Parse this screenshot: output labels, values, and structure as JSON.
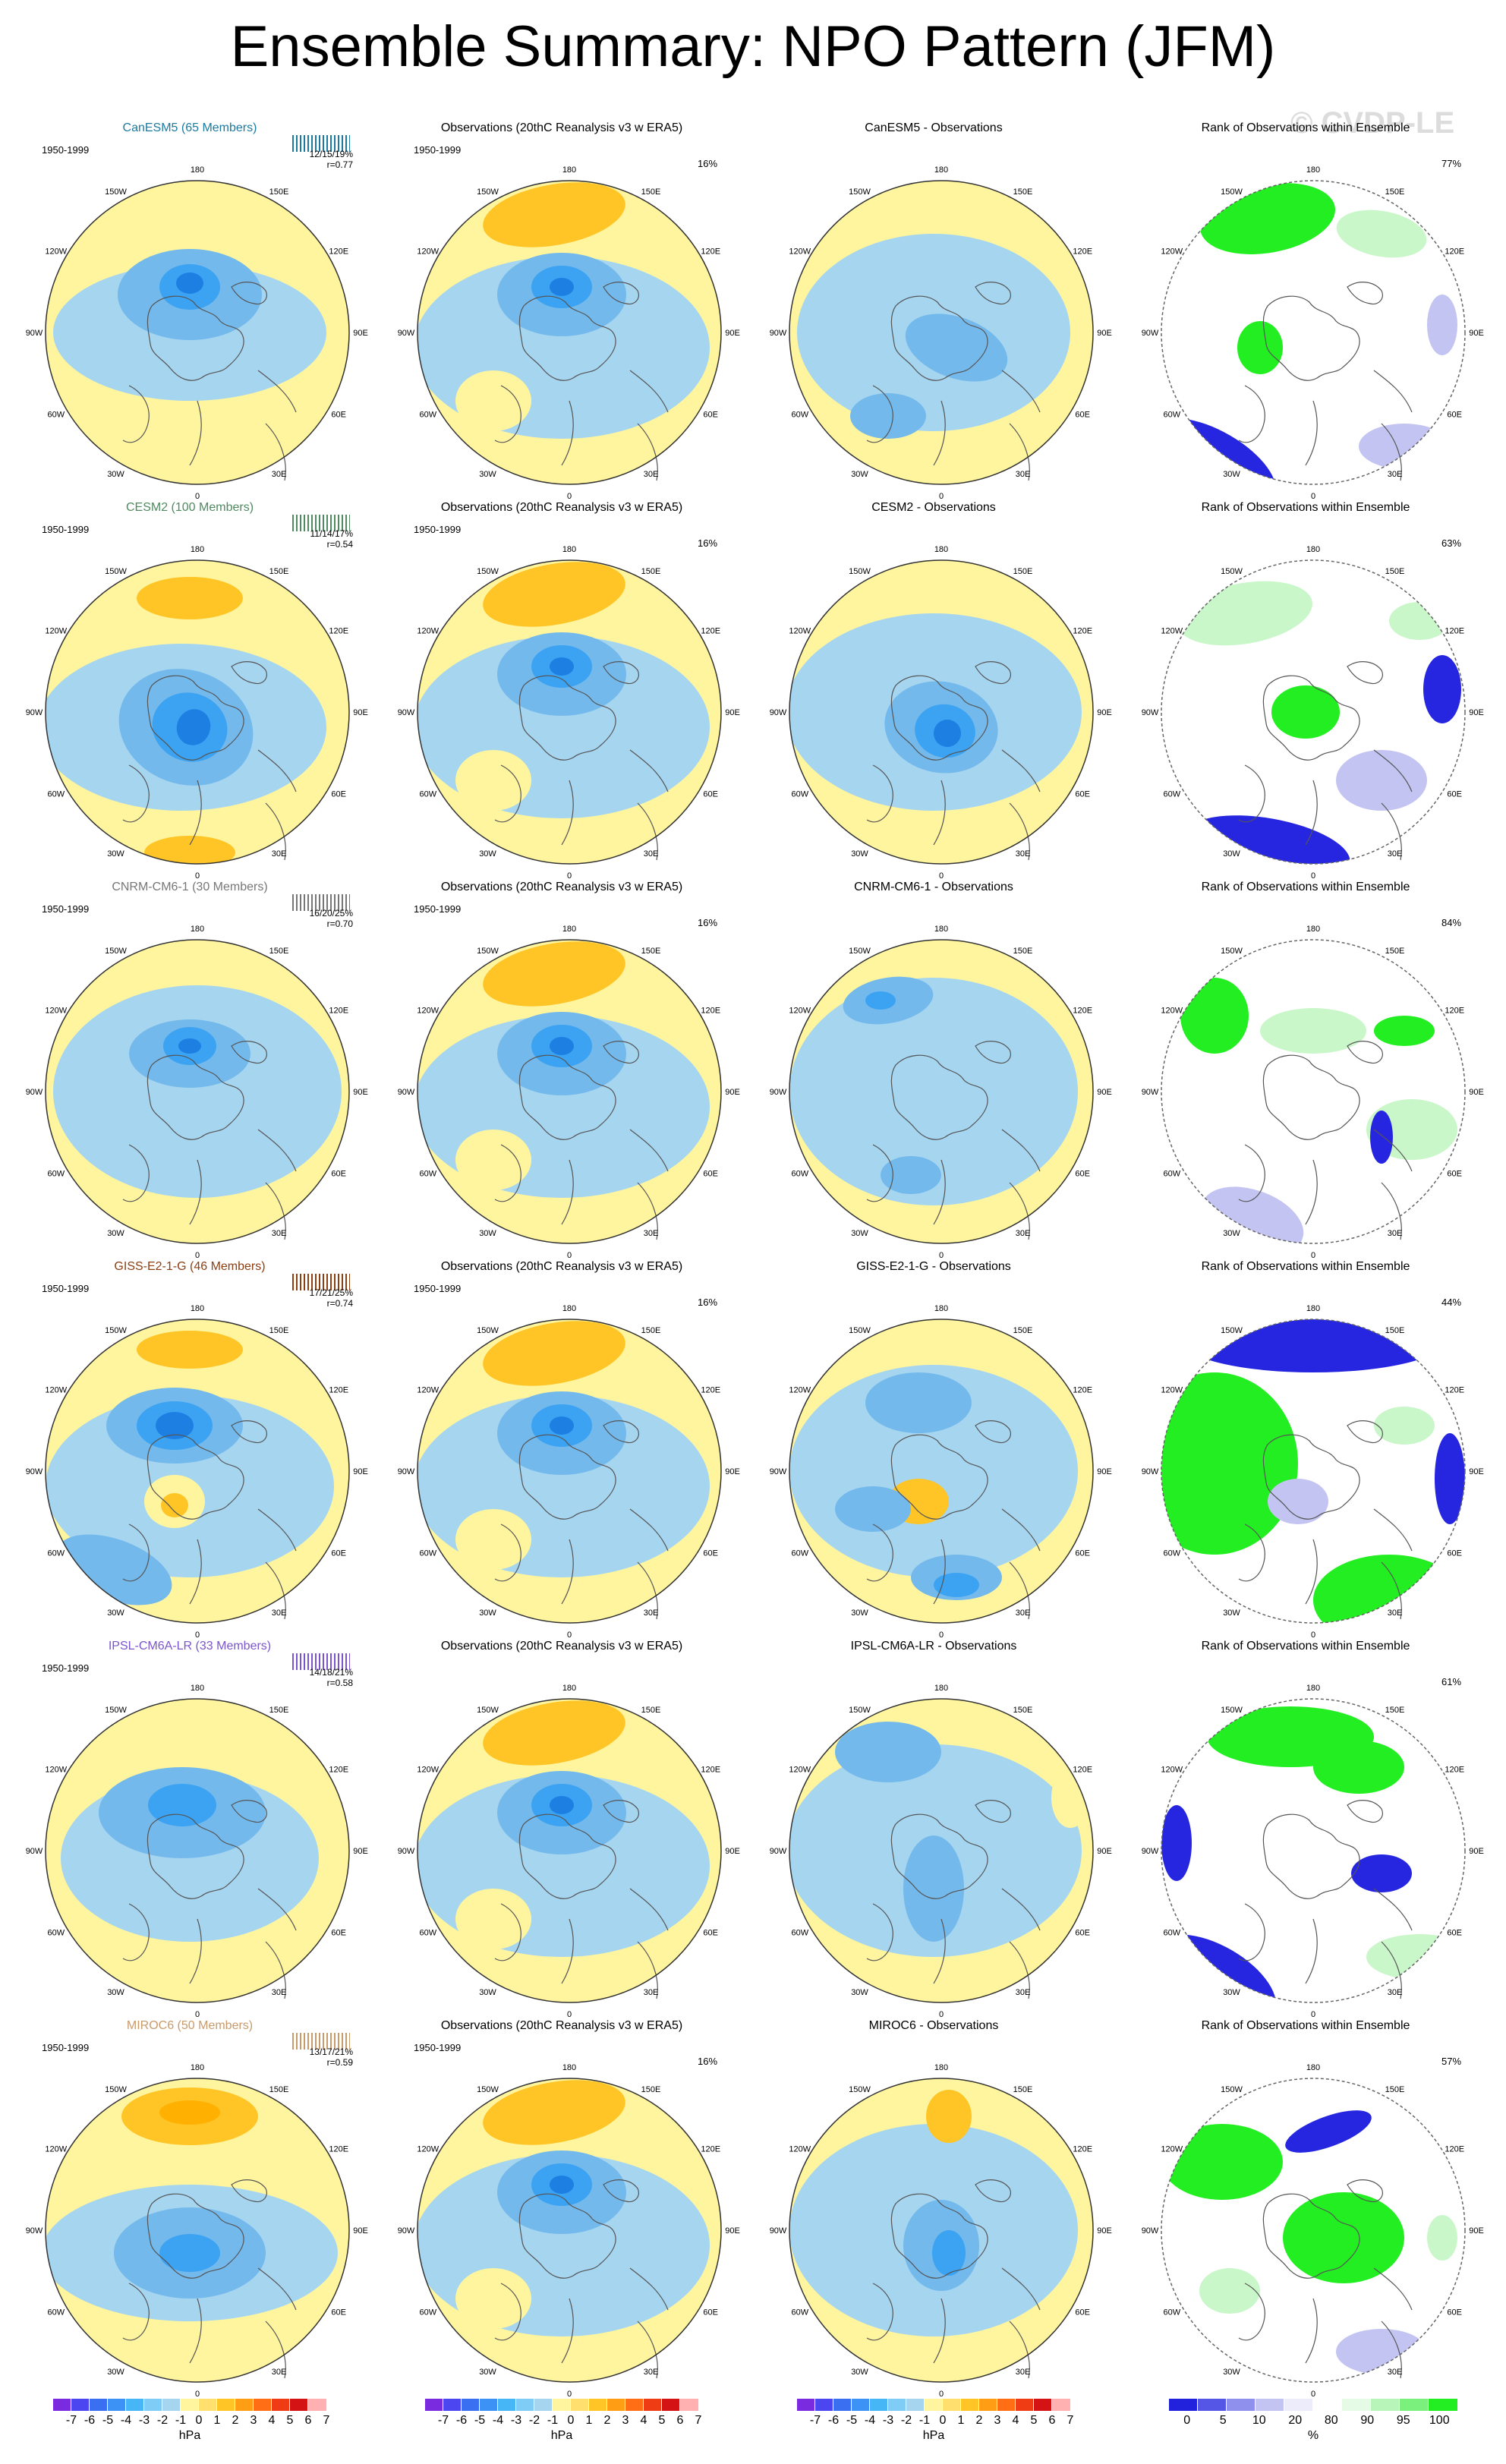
{
  "page": {
    "title": "Ensemble Summary: NPO Pattern (JFM)",
    "watermark": "© CVDP-LE",
    "period": "1950-1999",
    "obs_title": "Observations (20thC Reanalysis v3 w ERA5)",
    "rank_title": "Rank of Observations within Ensemble",
    "obs_pct": "16%"
  },
  "colors": {
    "sea_light_blue": "#a6d5f0",
    "pos_yellow": "#fff59f",
    "pos_orange": "#ffc527",
    "neg_blue1": "#74b9ec",
    "neg_blue2": "#3ba3f2",
    "neg_blue3": "#1e7fe3",
    "rank_green": "#22ee22",
    "rank_light_green": "#c9f7c9",
    "rank_blue": "#2626e0",
    "rank_light_blue": "#c4c4f3"
  },
  "meridian_labels": [
    "180",
    "150E",
    "120E",
    "90E",
    "60E",
    "30E",
    "0",
    "30W",
    "60W",
    "90W",
    "120W",
    "150W"
  ],
  "rows": [
    {
      "model": "CanESM5 (65 Members)",
      "model_color": "#1c7aa0",
      "stats1": "12/15/19%",
      "stats2": "r=0.77",
      "diff_title": "CanESM5 - Observations",
      "rank_pct": "77%"
    },
    {
      "model": "CESM2 (100 Members)",
      "model_color": "#4f8a60",
      "stats1": "11/14/17%",
      "stats2": "r=0.54",
      "diff_title": "CESM2 - Observations",
      "rank_pct": "63%"
    },
    {
      "model": "CNRM-CM6-1 (30 Members)",
      "model_color": "#777777",
      "stats1": "16/20/25%",
      "stats2": "r=0.70",
      "diff_title": "CNRM-CM6-1 - Observations",
      "rank_pct": "84%"
    },
    {
      "model": "GISS-E2-1-G (46 Members)",
      "model_color": "#8b3f12",
      "stats1": "17/21/25%",
      "stats2": "r=0.74",
      "diff_title": "GISS-E2-1-G - Observations",
      "rank_pct": "44%"
    },
    {
      "model": "IPSL-CM6A-LR (33 Members)",
      "model_color": "#7a55cc",
      "stats1": "14/18/21%",
      "stats2": "r=0.58",
      "diff_title": "IPSL-CM6A-LR - Observations",
      "rank_pct": "61%"
    },
    {
      "model": "MIROC6 (50 Members)",
      "model_color": "#c99a6a",
      "stats1": "13/17/21%",
      "stats2": "r=0.59",
      "diff_title": "MIROC6 - Observations",
      "rank_pct": "57%"
    }
  ],
  "colorbars": {
    "hpa_colors": [
      "#7a2be0",
      "#4b46f0",
      "#3a6ff2",
      "#3d92f6",
      "#46b6f6",
      "#7fcdf6",
      "#a6d5f0",
      "#fff59f",
      "#ffe06e",
      "#ffc527",
      "#ff9e14",
      "#ff6e14",
      "#f03c14",
      "#d41414",
      "#ffb0b0"
    ],
    "hpa_ticks": [
      "-7",
      "-6",
      "-5",
      "-4",
      "-3",
      "-2",
      "-1",
      "0",
      "1",
      "2",
      "3",
      "4",
      "5",
      "6",
      "7"
    ],
    "hpa_unit": "hPa",
    "rank_colors": [
      "#2222dd",
      "#5555e6",
      "#8f8fee",
      "#c4c4f3",
      "#ececfa",
      "#ffffff",
      "#e6fbe6",
      "#b8f5b8",
      "#7cf07c",
      "#22ee22"
    ],
    "rank_ticks": [
      "0",
      "5",
      "10",
      "20",
      "80",
      "90",
      "95",
      "100"
    ],
    "rank_unit": "%"
  }
}
